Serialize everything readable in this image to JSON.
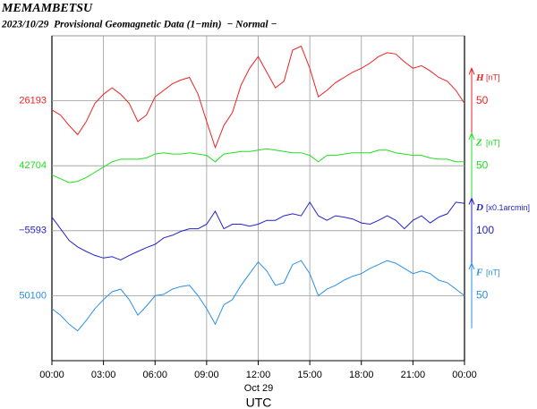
{
  "chart_data": {
    "type": "line",
    "title": "MEMAMBETSU",
    "subtitle": "2023/10/29  Provisional Geomagnetic Data (1−min)  − Normal −",
    "x": [
      0,
      0.5,
      1,
      1.5,
      2,
      2.5,
      3,
      3.5,
      4,
      4.5,
      5,
      5.5,
      6,
      6.5,
      7,
      7.5,
      8,
      8.5,
      9,
      9.5,
      10,
      10.5,
      11,
      11.5,
      12,
      12.5,
      13,
      13.5,
      14,
      14.5,
      15,
      15.5,
      16,
      16.5,
      17,
      17.5,
      18,
      18.5,
      19,
      19.5,
      20,
      20.5,
      21,
      21.5,
      22,
      22.5,
      23,
      23.5,
      24
    ],
    "xlim": [
      0,
      24
    ],
    "xticks": [
      {
        "value": 0,
        "label": "00:00"
      },
      {
        "value": 3,
        "label": "03:00"
      },
      {
        "value": 6,
        "label": "06:00"
      },
      {
        "value": 9,
        "label": "09:00"
      },
      {
        "value": 12,
        "label": "12:00"
      },
      {
        "value": 15,
        "label": "15:00"
      },
      {
        "value": 18,
        "label": "18:00"
      },
      {
        "value": 21,
        "label": "21:00"
      },
      {
        "value": 24,
        "label": "00:00"
      }
    ],
    "date_label": "Oct 29",
    "xlabel": "UTC",
    "grid": true,
    "series": [
      {
        "name": "H",
        "unit": "[nT]",
        "color": "#ee2222",
        "scale": 50,
        "ylim": [
          25993,
          26243
        ],
        "yticks": [
          26193
        ],
        "values": [
          26186,
          26182,
          26174,
          26167,
          26177,
          26191,
          26198,
          26203,
          26198,
          26191,
          26177,
          26182,
          26196,
          26201,
          26206,
          26209,
          26211,
          26198,
          26177,
          26157,
          26174,
          26184,
          26205,
          26218,
          26227,
          26215,
          26203,
          26208,
          26232,
          26235,
          26218,
          26196,
          26201,
          26207,
          26211,
          26215,
          26218,
          26222,
          26227,
          26230,
          26229,
          26223,
          26218,
          26220,
          26216,
          26211,
          26208,
          26201,
          26191
        ]
      },
      {
        "name": "Z",
        "unit": "[nT]",
        "color": "#22dd22",
        "scale": 50,
        "ylim": [
          42554,
          42804
        ],
        "yticks": [
          42704
        ],
        "values": [
          42697,
          42694,
          42691,
          42692,
          42695,
          42699,
          42703,
          42707,
          42709,
          42709,
          42709,
          42710,
          42713,
          42714,
          42713,
          42713,
          42714,
          42713,
          42712,
          42707,
          42713,
          42714,
          42715,
          42715,
          42716,
          42717,
          42716,
          42715,
          42714,
          42714,
          42712,
          42707,
          42712,
          42712,
          42713,
          42714,
          42714,
          42714,
          42716,
          42716,
          42714,
          42713,
          42712,
          42712,
          42710,
          42709,
          42709,
          42707,
          42707
        ]
      },
      {
        "name": "D",
        "unit": "[x0.1arcmin]",
        "color": "#2222cc",
        "scale": 100,
        "ylim": [
          -5793,
          -5293
        ],
        "yticks": [
          {
            "value": -5593,
            "label": "−5593"
          }
        ],
        "values": [
          -5572,
          -5590,
          -5608,
          -5618,
          -5625,
          -5631,
          -5635,
          -5633,
          -5638,
          -5631,
          -5625,
          -5619,
          -5614,
          -5604,
          -5600,
          -5594,
          -5590,
          -5590,
          -5583,
          -5563,
          -5590,
          -5583,
          -5583,
          -5586,
          -5583,
          -5577,
          -5577,
          -5570,
          -5567,
          -5570,
          -5549,
          -5570,
          -5577,
          -5570,
          -5572,
          -5575,
          -5581,
          -5583,
          -5577,
          -5570,
          -5577,
          -5590,
          -5577,
          -5570,
          -5581,
          -5572,
          -5567,
          -5549,
          -5551
        ]
      },
      {
        "name": "F",
        "unit": "[nT]",
        "color": "#2a8fe6",
        "scale": 50,
        "ylim": [
          50050,
          50300
        ],
        "yticks": [
          50100
        ],
        "values": [
          50090,
          50085,
          50078,
          50073,
          50081,
          50090,
          50097,
          50103,
          50105,
          50097,
          50085,
          50092,
          50100,
          50101,
          50105,
          50107,
          50108,
          50100,
          50090,
          50078,
          50093,
          50097,
          50108,
          50117,
          50126,
          50119,
          50108,
          50110,
          50124,
          50127,
          50117,
          50100,
          50105,
          50108,
          50112,
          50115,
          50117,
          50121,
          50124,
          50127,
          50125,
          50121,
          50117,
          50119,
          50117,
          50112,
          50110,
          50105,
          50100
        ]
      }
    ]
  }
}
